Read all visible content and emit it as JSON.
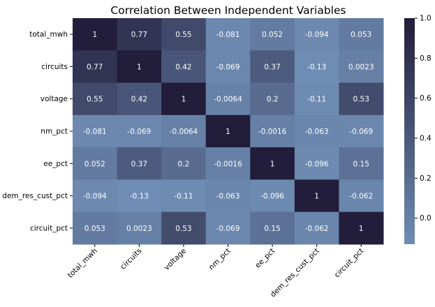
{
  "chart_data": {
    "type": "heatmap",
    "title": "Correlation Between Independent Variables",
    "row_labels": [
      "total_mwh",
      "circuits",
      "voltage",
      "nm_pct",
      "ee_pct",
      "dem_res_cust_pct",
      "circuit_pct"
    ],
    "col_labels": [
      "total_mwh",
      "circuits",
      "voltage",
      "nm_pct",
      "ee_pct",
      "dem_res_cust_pct",
      "circuit_pct"
    ],
    "values": [
      [
        1,
        0.77,
        0.55,
        -0.081,
        0.052,
        -0.094,
        0.053
      ],
      [
        0.77,
        1,
        0.42,
        -0.069,
        0.37,
        -0.13,
        0.0023
      ],
      [
        0.55,
        0.42,
        1,
        -0.0064,
        0.2,
        -0.11,
        0.53
      ],
      [
        -0.081,
        -0.069,
        -0.0064,
        1,
        -0.0016,
        -0.063,
        -0.069
      ],
      [
        0.052,
        0.37,
        0.2,
        -0.0016,
        1,
        -0.096,
        0.15
      ],
      [
        -0.094,
        -0.13,
        -0.11,
        -0.063,
        -0.096,
        1,
        -0.062
      ],
      [
        0.053,
        0.0023,
        0.53,
        -0.069,
        0.15,
        -0.062,
        1
      ]
    ],
    "cell_labels": [
      [
        "1",
        "0.77",
        "0.55",
        "-0.081",
        "0.052",
        "-0.094",
        "0.053"
      ],
      [
        "0.77",
        "1",
        "0.42",
        "-0.069",
        "0.37",
        "-0.13",
        "0.0023"
      ],
      [
        "0.55",
        "0.42",
        "1",
        "-0.0064",
        "0.2",
        "-0.11",
        "0.53"
      ],
      [
        "-0.081",
        "-0.069",
        "-0.0064",
        "1",
        "-0.0016",
        "-0.063",
        "-0.069"
      ],
      [
        "0.052",
        "0.37",
        "0.2",
        "-0.0016",
        "1",
        "-0.096",
        "0.15"
      ],
      [
        "-0.094",
        "-0.13",
        "-0.11",
        "-0.063",
        "-0.096",
        "1",
        "-0.062"
      ],
      [
        "0.053",
        "0.0023",
        "0.53",
        "-0.069",
        "0.15",
        "-0.062",
        "1"
      ]
    ],
    "colorbar": {
      "range": [
        -0.13,
        1.0
      ],
      "ticks": [
        "0.0",
        "0.2",
        "0.4",
        "0.6",
        "0.8",
        "1.0"
      ],
      "tick_values": [
        0.0,
        0.2,
        0.4,
        0.6,
        0.8,
        1.0
      ],
      "colors": {
        "low": "#6f8db4",
        "high": "#221d3a"
      }
    },
    "xlabel": "",
    "ylabel": "",
    "legend": "none"
  }
}
